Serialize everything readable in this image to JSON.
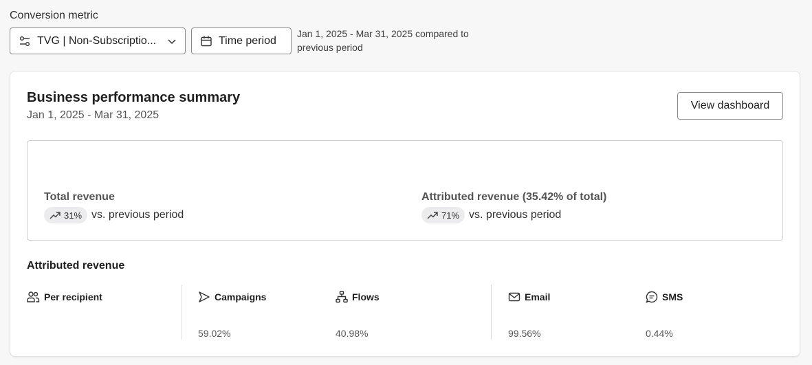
{
  "conversion_metric": {
    "label": "Conversion metric",
    "selected": "TVG | Non-Subscriptio...",
    "icons": {
      "lead": "metric-filter-icon",
      "trail": "chevron-down-icon"
    }
  },
  "time_period": {
    "button_label": "Time period",
    "icon": "calendar-icon",
    "description": "Jan 1, 2025 - Mar 31, 2025 compared to previous period"
  },
  "summary": {
    "title": "Business performance summary",
    "date_range": "Jan 1, 2025 - Mar 31, 2025",
    "view_button": "View dashboard",
    "kpis": [
      {
        "label": "Total revenue",
        "change": "31%",
        "change_icon": "trend-up-icon",
        "compare": "vs. previous period"
      },
      {
        "label": "Attributed revenue (35.42% of total)",
        "change": "71%",
        "change_icon": "trend-up-icon",
        "compare": "vs. previous period"
      }
    ]
  },
  "attributed": {
    "title": "Attributed revenue",
    "columns": [
      {
        "label": "Per recipient",
        "icon": "people-icon",
        "value": ""
      },
      {
        "label": "Campaigns",
        "icon": "send-icon",
        "value": "59.02%"
      },
      {
        "label": "Flows",
        "icon": "flow-icon",
        "value": "40.98%"
      },
      {
        "label": "Email",
        "icon": "mail-icon",
        "value": "99.56%"
      },
      {
        "label": "SMS",
        "icon": "sms-icon",
        "value": "0.44%"
      }
    ]
  },
  "colors": {
    "background": "#f7f7f8",
    "card": "#ffffff",
    "border": "#cfcfd2",
    "pill": "#ececee",
    "text": "#1f1f1f"
  }
}
